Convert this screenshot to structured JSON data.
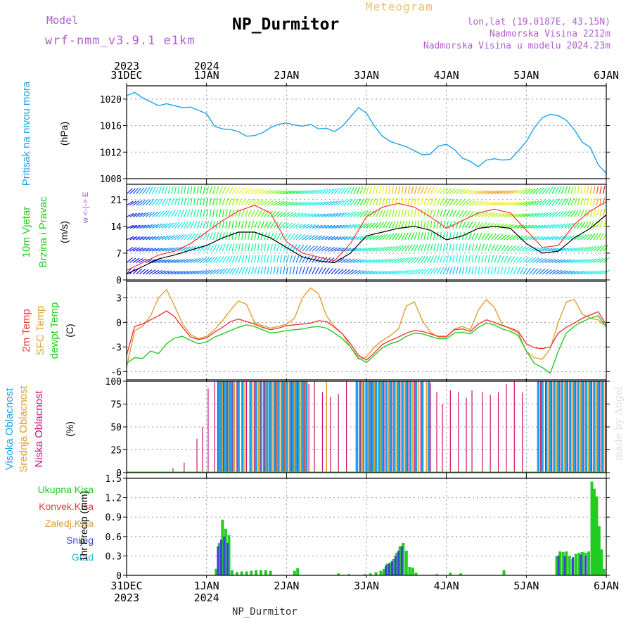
{
  "header": {
    "model_label": "Model",
    "model_name": "wrf-nmm_v3.9.1  e1km",
    "title": "NP_Durmitor",
    "meteogram_label": "Meteogram",
    "location": "lon,lat (19.0187E, 43.15N)",
    "altitude": "Nadmorska Visina 2212m",
    "model_altitude": "Nadmorska Visina u modelu 2024.23m",
    "credit": "made by Angel",
    "footer": "NP_Durmitor"
  },
  "colors": {
    "pressure": "#1aa3e8",
    "t2m": "#ee3a3a",
    "sfc": "#e0a030",
    "dew": "#22cc22",
    "high_cloud": "#1aa3e8",
    "mid_cloud": "#e0a030",
    "low_cloud": "#cc1177",
    "total_rain": "#22cc22",
    "conv_rain": "#ee3a3a",
    "snow": "#4040dd",
    "hail": "#20c0d0",
    "wind_speed": "#000000",
    "wind_gust": "#ff3333"
  },
  "time_axis": {
    "start": "2023-12-31 00:00",
    "end": "2024-01-06 00:00",
    "top_labels": [
      {
        "day": "31DEC",
        "year": "2023",
        "t": 0
      },
      {
        "day": "1JAN",
        "year": "2024",
        "t": 1
      },
      {
        "day": "2JAN",
        "year": "",
        "t": 2
      },
      {
        "day": "3JAN",
        "year": "",
        "t": 3
      },
      {
        "day": "4JAN",
        "year": "",
        "t": 4
      },
      {
        "day": "5JAN",
        "year": "",
        "t": 5
      },
      {
        "day": "6JAN",
        "year": "",
        "t": 6
      }
    ]
  },
  "chart_data": [
    {
      "type": "line",
      "id": "pressure",
      "ylabel_main": "Pritisak na nivou mora",
      "unit": "(hPa)",
      "ylim": [
        1008,
        1022
      ],
      "yticks": [
        1008,
        1012,
        1016,
        1020
      ],
      "x": [
        0,
        0.1,
        0.2,
        0.3,
        0.4,
        0.5,
        0.6,
        0.7,
        0.8,
        0.9,
        1.0,
        1.1,
        1.2,
        1.3,
        1.4,
        1.5,
        1.6,
        1.7,
        1.8,
        1.9,
        2.0,
        2.1,
        2.2,
        2.3,
        2.4,
        2.5,
        2.6,
        2.7,
        2.8,
        2.9,
        3.0,
        3.1,
        3.2,
        3.3,
        3.4,
        3.5,
        3.6,
        3.7,
        3.8,
        3.9,
        4.0,
        4.1,
        4.2,
        4.3,
        4.4,
        4.5,
        4.6,
        4.7,
        4.8,
        4.9,
        5.0,
        5.1,
        5.2,
        5.3,
        5.4,
        5.5,
        5.6,
        5.7,
        5.8,
        5.9,
        6.0
      ],
      "values": [
        1020.5,
        1021.0,
        1020.2,
        1019.6,
        1019.0,
        1019.3,
        1019.0,
        1018.7,
        1018.8,
        1018.3,
        1017.8,
        1015.9,
        1015.5,
        1015.4,
        1015.1,
        1014.4,
        1014.5,
        1014.9,
        1015.7,
        1016.2,
        1016.4,
        1016.1,
        1015.9,
        1016.2,
        1015.5,
        1015.6,
        1015.1,
        1015.9,
        1017.3,
        1018.7,
        1017.9,
        1015.9,
        1014.4,
        1013.6,
        1013.2,
        1012.8,
        1012.2,
        1011.6,
        1011.7,
        1012.9,
        1013.2,
        1012.4,
        1011.1,
        1010.6,
        1009.8,
        1010.8,
        1011.0,
        1010.8,
        1010.9,
        1012.2,
        1013.6,
        1015.7,
        1017.2,
        1017.7,
        1017.5,
        1016.8,
        1015.4,
        1013.5,
        1012.7,
        1010.1,
        1008.8
      ]
    },
    {
      "type": "line",
      "id": "wind",
      "ylabel_main": "10m Vjetar",
      "ylabel_sub": "Brzina i Pravac",
      "unit": "(m/s)",
      "direction_legend": "w <-|-> E",
      "ylim": [
        0,
        25
      ],
      "yticks": [
        0,
        7,
        14,
        21
      ],
      "x": [
        0,
        0.2,
        0.4,
        0.6,
        0.8,
        1.0,
        1.2,
        1.4,
        1.6,
        1.8,
        2.0,
        2.2,
        2.4,
        2.6,
        2.8,
        3.0,
        3.2,
        3.4,
        3.6,
        3.8,
        4.0,
        4.2,
        4.4,
        4.6,
        4.8,
        5.0,
        5.2,
        5.4,
        5.6,
        5.8,
        6.0
      ],
      "series": [
        {
          "id": "speed",
          "values": [
            1.5,
            3.5,
            5.5,
            6.5,
            7.8,
            9.0,
            11.0,
            12.5,
            12.5,
            11.0,
            8.5,
            6.0,
            5.0,
            4.5,
            7.0,
            11.5,
            12.5,
            13.5,
            14.0,
            13.0,
            10.5,
            11.5,
            13.5,
            14.0,
            13.5,
            9.5,
            7.0,
            7.5,
            11.0,
            13.5,
            17.0
          ]
        },
        {
          "id": "gust",
          "values": [
            2.5,
            4.5,
            6.5,
            7.5,
            9.5,
            12.5,
            15.5,
            18.0,
            19.5,
            17.5,
            10.0,
            7.0,
            6.0,
            5.0,
            9.5,
            16.5,
            19.0,
            20.0,
            19.0,
            16.5,
            13.5,
            15.5,
            17.5,
            18.5,
            17.5,
            13.0,
            8.5,
            9.0,
            14.5,
            18.0,
            20.5
          ]
        }
      ]
    },
    {
      "type": "line",
      "id": "temperature",
      "ylabel_lines": [
        "2m Temp",
        "SFC Temp",
        "dewpt Temp"
      ],
      "unit": "(C)",
      "ylim": [
        -7,
        5
      ],
      "yticks": [
        -6,
        -3,
        0,
        3
      ],
      "x": [
        0,
        0.1,
        0.2,
        0.3,
        0.4,
        0.5,
        0.6,
        0.7,
        0.8,
        0.9,
        1.0,
        1.1,
        1.2,
        1.3,
        1.4,
        1.5,
        1.6,
        1.7,
        1.8,
        1.9,
        2.0,
        2.1,
        2.2,
        2.3,
        2.4,
        2.5,
        2.6,
        2.7,
        2.8,
        2.9,
        3.0,
        3.1,
        3.2,
        3.3,
        3.4,
        3.5,
        3.6,
        3.7,
        3.8,
        3.9,
        4.0,
        4.1,
        4.2,
        4.3,
        4.4,
        4.5,
        4.6,
        4.7,
        4.8,
        4.9,
        5.0,
        5.1,
        5.2,
        5.3,
        5.4,
        5.5,
        5.6,
        5.7,
        5.8,
        5.9,
        6.0
      ],
      "series": [
        {
          "id": "t2m",
          "values": [
            -4.0,
            -0.5,
            -0.2,
            0.3,
            0.8,
            1.4,
            0.7,
            -0.6,
            -1.8,
            -2.1,
            -1.9,
            -1.2,
            -0.6,
            0.1,
            0.4,
            0.1,
            -0.2,
            -0.6,
            -0.9,
            -0.7,
            -0.4,
            -0.3,
            -0.2,
            -0.1,
            0.2,
            0.1,
            -0.6,
            -1.4,
            -2.6,
            -4.0,
            -4.6,
            -3.7,
            -2.7,
            -2.2,
            -1.8,
            -1.3,
            -1.0,
            -1.1,
            -1.4,
            -1.7,
            -1.7,
            -0.9,
            -0.8,
            -1.1,
            -0.2,
            0.3,
            0.0,
            -0.4,
            -0.7,
            -1.1,
            -2.6,
            -3.1,
            -3.2,
            -3.0,
            -1.3,
            -0.6,
            -0.1,
            0.5,
            0.9,
            1.3,
            -0.3
          ]
        },
        {
          "id": "sfc",
          "values": [
            -5.5,
            -1.0,
            -0.5,
            0.8,
            3.0,
            4.0,
            2.0,
            -0.2,
            -1.5,
            -2.0,
            -1.7,
            -0.9,
            0.2,
            1.5,
            2.6,
            2.2,
            0.0,
            -0.4,
            -0.7,
            -0.5,
            -0.2,
            0.5,
            3.0,
            4.2,
            3.5,
            0.8,
            -0.5,
            -1.4,
            -3.0,
            -4.5,
            -4.2,
            -3.0,
            -2.2,
            -1.6,
            -0.8,
            2.0,
            2.5,
            0.2,
            -1.2,
            -1.8,
            -1.8,
            -0.8,
            -0.5,
            -0.9,
            1.5,
            2.8,
            1.8,
            -0.3,
            -0.8,
            -1.3,
            -3.5,
            -4.3,
            -4.5,
            -3.2,
            0.0,
            2.5,
            2.8,
            1.0,
            0.5,
            0.3,
            -0.5
          ]
        },
        {
          "id": "dew",
          "values": [
            -5.0,
            -4.3,
            -4.4,
            -3.5,
            -3.8,
            -2.6,
            -1.9,
            -1.7,
            -2.2,
            -2.6,
            -2.4,
            -1.8,
            -1.4,
            -1.0,
            -0.6,
            -0.3,
            -0.5,
            -0.9,
            -1.3,
            -1.2,
            -1.0,
            -0.9,
            -0.8,
            -0.6,
            -0.5,
            -0.7,
            -1.3,
            -2.0,
            -3.0,
            -4.3,
            -4.9,
            -4.0,
            -3.1,
            -2.6,
            -2.3,
            -1.7,
            -1.3,
            -1.4,
            -1.7,
            -2.0,
            -2.0,
            -1.3,
            -1.2,
            -1.4,
            -0.6,
            -0.1,
            -0.3,
            -0.8,
            -1.1,
            -1.6,
            -3.5,
            -5.0,
            -5.5,
            -6.2,
            -3.5,
            -1.3,
            -0.5,
            0.1,
            0.5,
            0.8,
            -0.6
          ]
        }
      ]
    },
    {
      "type": "bar",
      "id": "clouds",
      "ylabel_lines": [
        "Visoka Oblacnost",
        "Srednja Oblacnost",
        "Niska Oblacnost"
      ],
      "unit": "(%)",
      "ylim": [
        0,
        100
      ],
      "yticks": [
        0,
        25,
        50,
        75,
        100
      ],
      "series": [
        {
          "id": "high",
          "x": [
            1.15,
            1.18,
            1.22,
            1.25,
            1.28,
            1.3,
            1.32,
            1.4,
            1.45,
            1.55,
            1.62,
            1.68,
            1.72,
            1.76,
            1.8,
            1.85,
            1.9,
            1.95,
            2.0,
            2.05,
            2.08,
            2.12,
            2.15,
            2.2,
            2.25,
            2.88,
            2.92,
            2.96,
            3.0,
            3.04,
            3.08,
            3.12,
            3.16,
            3.2,
            3.25,
            3.3,
            3.35,
            3.4,
            3.45,
            3.5,
            3.55,
            3.62,
            3.7,
            3.78,
            5.15,
            5.2,
            5.25,
            5.3,
            5.35,
            5.4,
            5.45,
            5.5,
            5.55,
            5.6,
            5.65,
            5.7,
            5.75,
            5.8,
            5.85,
            5.9,
            5.95
          ],
          "values": [
            100,
            100,
            100,
            100,
            100,
            100,
            100,
            100,
            100,
            100,
            100,
            100,
            100,
            100,
            100,
            100,
            100,
            100,
            100,
            100,
            100,
            100,
            100,
            100,
            100,
            100,
            100,
            100,
            100,
            100,
            100,
            100,
            100,
            100,
            100,
            100,
            100,
            100,
            100,
            100,
            100,
            100,
            100,
            100,
            100,
            100,
            100,
            100,
            100,
            100,
            100,
            100,
            100,
            100,
            100,
            100,
            100,
            100,
            100,
            100,
            100
          ]
        },
        {
          "id": "mid",
          "x": [
            1.2,
            1.27,
            1.35,
            1.48,
            1.58,
            1.65,
            1.74,
            1.82,
            1.88,
            1.93,
            1.98,
            2.02,
            2.1,
            2.18,
            2.23,
            2.5,
            2.95,
            3.02,
            3.1,
            3.18,
            3.28,
            3.38,
            3.48,
            3.58,
            3.65,
            3.75,
            5.18,
            5.28,
            5.38,
            5.48,
            5.58,
            5.68,
            5.78,
            5.88,
            5.97
          ],
          "values": [
            100,
            100,
            100,
            100,
            100,
            100,
            100,
            100,
            100,
            100,
            100,
            100,
            100,
            100,
            100,
            100,
            100,
            100,
            100,
            100,
            100,
            100,
            100,
            100,
            100,
            100,
            100,
            100,
            100,
            100,
            100,
            100,
            100,
            100,
            100
          ]
        },
        {
          "id": "low",
          "x": [
            0.58,
            0.72,
            0.88,
            0.95,
            1.02,
            1.1,
            1.14,
            1.21,
            1.26,
            1.33,
            1.38,
            1.5,
            1.6,
            1.67,
            1.73,
            1.79,
            1.87,
            1.97,
            2.06,
            2.14,
            2.22,
            2.28,
            2.35,
            2.45,
            2.55,
            2.65,
            2.75,
            2.93,
            3.06,
            3.22,
            3.32,
            3.42,
            3.52,
            3.6,
            3.68,
            3.8,
            3.88,
            3.95,
            4.05,
            4.15,
            4.25,
            4.32,
            4.45,
            4.55,
            4.65,
            4.75,
            4.85,
            4.95,
            5.18,
            5.24,
            5.32,
            5.42,
            5.52,
            5.62,
            5.72,
            5.82,
            5.92,
            5.99
          ],
          "values": [
            5,
            11,
            37,
            50,
            92,
            100,
            100,
            100,
            100,
            100,
            100,
            100,
            100,
            100,
            100,
            100,
            100,
            100,
            100,
            100,
            100,
            97,
            100,
            88,
            83,
            86,
            100,
            100,
            100,
            100,
            100,
            100,
            100,
            100,
            100,
            98,
            88,
            75,
            90,
            88,
            82,
            90,
            88,
            85,
            88,
            97,
            100,
            88,
            100,
            100,
            100,
            100,
            100,
            100,
            100,
            100,
            100,
            100
          ]
        }
      ]
    },
    {
      "type": "bar",
      "id": "precip",
      "legend": [
        "Ukupna Kisa",
        "Konvek.Kisa",
        "Zaledj.Kisa",
        "Snijeg",
        "Grad"
      ],
      "ylabel": "1hr Precip (mm)",
      "ylim": [
        0,
        1.5
      ],
      "yticks": [
        0,
        0.3,
        0.6,
        0.9,
        1.2,
        1.5
      ],
      "series": [
        {
          "id": "total",
          "x": [
            1.12,
            1.16,
            1.2,
            1.24,
            1.28,
            1.32,
            1.38,
            1.44,
            1.5,
            1.56,
            1.62,
            1.68,
            1.74,
            1.8,
            2.1,
            2.14,
            2.65,
            2.78,
            2.98,
            3.05,
            3.12,
            3.18,
            3.22,
            3.26,
            3.3,
            3.34,
            3.38,
            3.42,
            3.46,
            3.5,
            3.54,
            3.58,
            3.62,
            3.88,
            4.05,
            4.18,
            4.72,
            5.38,
            5.42,
            5.46,
            5.5,
            5.54,
            5.58,
            5.62,
            5.66,
            5.7,
            5.74,
            5.78,
            5.82,
            5.85,
            5.88,
            5.91,
            5.94,
            5.97
          ],
          "values": [
            0.1,
            0.5,
            0.86,
            0.72,
            0.62,
            0.08,
            0.05,
            0.06,
            0.06,
            0.07,
            0.08,
            0.08,
            0.08,
            0.07,
            0.07,
            0.11,
            0.03,
            0.02,
            0.02,
            0.03,
            0.05,
            0.07,
            0.1,
            0.18,
            0.2,
            0.25,
            0.35,
            0.45,
            0.5,
            0.38,
            0.13,
            0.12,
            0.04,
            0.02,
            0.04,
            0.03,
            0.08,
            0.3,
            0.37,
            0.36,
            0.37,
            0.3,
            0.25,
            0.33,
            0.35,
            0.36,
            0.35,
            0.37,
            1.45,
            1.34,
            1.22,
            0.76,
            0.4,
            0.1
          ]
        },
        {
          "id": "snow",
          "x": [
            1.16,
            1.2,
            1.24,
            1.28,
            3.26,
            3.3,
            3.34,
            3.38,
            3.42,
            3.46,
            5.42,
            5.5,
            5.6,
            5.7,
            5.76
          ],
          "values": [
            0.45,
            0.55,
            0.6,
            0.5,
            0.15,
            0.18,
            0.22,
            0.3,
            0.38,
            0.45,
            0.3,
            0.3,
            0.28,
            0.32,
            0.3
          ]
        }
      ]
    }
  ]
}
